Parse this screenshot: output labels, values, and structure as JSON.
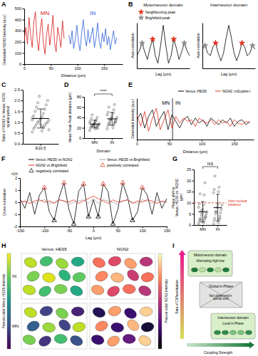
{
  "chart_data": [
    {
      "panel": "A",
      "type": "line",
      "x_label": "Distance (µm)",
      "y_label": "Detrended NGN2 intensity (a.u.)",
      "xlim": [
        0,
        185
      ],
      "xticks": [
        0,
        50,
        100,
        150
      ],
      "ylim": [
        0,
        500
      ],
      "yticks": [
        0,
        100,
        200,
        300,
        400,
        500
      ],
      "series": [
        {
          "name": "MN",
          "color": "#d7191c",
          "x": [
            0,
            3,
            6,
            9,
            12,
            15,
            18,
            21,
            24,
            27,
            30,
            33,
            36,
            39,
            42,
            45,
            48,
            51,
            54,
            57,
            60,
            63,
            66,
            69,
            72,
            75
          ],
          "values": [
            210,
            330,
            180,
            420,
            260,
            150,
            380,
            470,
            240,
            120,
            300,
            410,
            190,
            90,
            260,
            360,
            170,
            280,
            440,
            200,
            110,
            330,
            250,
            150,
            390,
            230
          ]
        },
        {
          "name": "IN",
          "color": "#2b5fd9",
          "x": [
            84,
            87,
            90,
            93,
            96,
            99,
            102,
            105,
            108,
            111,
            114,
            117,
            120,
            123,
            126,
            129,
            132,
            135,
            138,
            141,
            144,
            147,
            150,
            153,
            156,
            159,
            162,
            165,
            168,
            171,
            174
          ],
          "values": [
            260,
            180,
            300,
            140,
            220,
            350,
            200,
            120,
            280,
            400,
            240,
            160,
            310,
            190,
            260,
            330,
            150,
            230,
            370,
            210,
            140,
            280,
            200,
            320,
            170,
            250,
            130,
            220,
            300,
            180,
            240
          ]
        }
      ]
    },
    {
      "panel": "B",
      "type": "line",
      "title": "Motorneuron domain",
      "x_label": "Lag (µm)",
      "y_label": "Auto-correlation",
      "xlim": [
        -60,
        60
      ],
      "ylim": [
        -0.7,
        1.1
      ],
      "tick_labels": false,
      "legend": "top",
      "x": [
        -60,
        -54,
        -48,
        -42,
        -36,
        -30,
        -24,
        -18,
        -12,
        -6,
        0,
        6,
        12,
        18,
        24,
        30,
        36,
        42,
        48,
        54,
        60
      ],
      "series": [
        {
          "color": "#000000",
          "values": [
            -0.2,
            0.0,
            0.3,
            -0.05,
            -0.35,
            0.1,
            0.45,
            -0.2,
            -0.5,
            0.2,
            1,
            0.2,
            -0.5,
            -0.2,
            0.45,
            0.1,
            -0.35,
            -0.05,
            0.3,
            0.0,
            -0.2
          ]
        },
        {
          "name": "Neighbouring peak",
          "type": "scatter",
          "marker": "star",
          "color": "#e0301e",
          "x": [
            -24,
            24
          ],
          "values": [
            0.45,
            0.45
          ]
        },
        {
          "name": "Brightfield peak",
          "type": "scatter",
          "marker": "star",
          "color": "#8a8a8a",
          "x": [
            -48,
            48
          ],
          "values": [
            0.3,
            0.3
          ]
        }
      ]
    },
    {
      "type": "line",
      "title": "Interneuron domain",
      "x_label": "Lag (µm)",
      "y_label": "Auto-correlation",
      "xlim": [
        -60,
        60
      ],
      "ylim": [
        -0.7,
        1.1
      ],
      "tick_labels": false,
      "x": [
        -60,
        -54,
        -48,
        -42,
        -36,
        -30,
        -24,
        -18,
        -12,
        -6,
        0,
        6,
        12,
        18,
        24,
        30,
        36,
        42,
        48,
        54,
        60
      ],
      "series": [
        {
          "color": "#000000",
          "values": [
            0.05,
            0.2,
            -0.1,
            -0.2,
            0.15,
            0.3,
            -0.1,
            -0.4,
            -0.1,
            0.5,
            1,
            0.5,
            -0.1,
            -0.4,
            -0.1,
            0.3,
            0.15,
            -0.2,
            -0.1,
            0.2,
            0.05
          ]
        },
        {
          "type": "scatter",
          "marker": "star",
          "color": "#e0301e",
          "x": [
            -30,
            30
          ],
          "values": [
            0.3,
            0.3
          ]
        },
        {
          "type": "scatter",
          "marker": "star",
          "color": "#8a8a8a",
          "x": [
            -54,
            54
          ],
          "values": [
            0.2,
            0.2
          ]
        }
      ]
    },
    {
      "panel": "C",
      "type": "dot",
      "y_label": "Ratio of NGN2 to Venus::HES5 spatial period",
      "categories": [
        "E10.5"
      ],
      "ylim": [
        0,
        2.5
      ],
      "yticks": [
        {
          "value": 0,
          "label": "0.0"
        },
        0.5,
        {
          "value": 1,
          "label": "1.0"
        },
        1.5,
        {
          "value": 2,
          "label": "2.0"
        },
        2.5
      ],
      "color": "#333333",
      "values": [
        [
          0.55,
          0.6,
          0.7,
          0.75,
          0.8,
          0.85,
          0.9,
          0.95,
          1.0,
          1.0,
          1.05,
          1.1,
          1.15,
          1.2,
          1.25,
          1.3,
          1.4,
          1.5,
          1.6,
          1.7,
          1.8,
          1.9,
          2.0,
          2.2,
          0.65,
          0.9,
          1.1,
          0.8
        ]
      ],
      "mean": [
        1.17
      ],
      "error": [
        0.44
      ]
    },
    {
      "panel": "D",
      "type": "dot",
      "x_label": "Domain",
      "y_label": "Mean Peak-Peak distance (µm)",
      "categories": [
        "MN",
        "IN"
      ],
      "ylim": [
        0,
        80
      ],
      "yticks": [
        0,
        20,
        40,
        60,
        80
      ],
      "color": "#333333",
      "annotations": [
        "****"
      ],
      "values": [
        [
          15,
          18,
          20,
          21,
          22,
          23,
          24,
          25,
          25,
          26,
          27,
          28,
          29,
          30,
          32,
          33,
          35,
          38,
          40,
          45,
          19,
          24
        ],
        [
          18,
          20,
          24,
          26,
          28,
          30,
          32,
          33,
          35,
          36,
          38,
          40,
          42,
          45,
          48,
          50,
          55,
          60,
          65,
          27,
          31,
          37
        ]
      ],
      "mean": [
        27.2,
        37.3
      ],
      "error": [
        7.5,
        12.5
      ]
    },
    {
      "panel": "E",
      "type": "line",
      "x_label": "Distance (µm)",
      "y_label": "Detrended intensity (a.u.)",
      "xlim": [
        0,
        180
      ],
      "xticks": [
        0,
        50,
        100,
        150
      ],
      "ylim": [
        -1,
        1.5
      ],
      "tick_labels": "x",
      "legend": "top",
      "annotations": [
        "MN",
        "IN"
      ],
      "boundary": 55,
      "x": [
        0,
        6,
        12,
        18,
        24,
        30,
        36,
        42,
        48,
        54,
        60,
        66,
        72,
        78,
        84,
        90,
        96,
        102,
        108,
        114,
        120,
        126,
        132,
        138,
        144,
        150,
        156,
        162,
        168,
        174
      ],
      "series": [
        {
          "name": "Venus::HES5",
          "color": "#000000",
          "values": [
            0.2,
            0.6,
            -0.3,
            0.4,
            0.8,
            -0.2,
            0.3,
            0.7,
            -0.4,
            0.5,
            0.1,
            -0.3,
            0.2,
            0.4,
            -0.1,
            0.3,
            0.0,
            0.2,
            -0.2,
            0.3,
            0.1,
            -0.1,
            0.2,
            0.0,
            0.3,
            -0.2,
            0.1,
            0.2,
            -0.1,
            0.1
          ]
        },
        {
          "name": "NGN2::mScarlet-I",
          "color": "#e0301e",
          "values": [
            0.5,
            -0.2,
            0.7,
            -0.5,
            0.3,
            0.9,
            -0.4,
            0.2,
            0.8,
            -0.3,
            0.4,
            0.0,
            0.3,
            0.1,
            0.2,
            -0.2,
            0.3,
            0.1,
            0.0,
            0.2,
            -0.1,
            0.2,
            0.0,
            0.1,
            -0.2,
            0.2,
            0.0,
            -0.1,
            0.1,
            0.0
          ]
        }
      ]
    },
    {
      "panel": "F",
      "type": "line",
      "x_label": "Lag (µm)",
      "y_label": "Cross-correlation",
      "y_scale_label": "×10⁵",
      "xlim": [
        -150,
        150
      ],
      "xticks": [
        -150,
        -100,
        -50,
        0,
        50,
        100,
        150
      ],
      "ylim": [
        -2,
        2
      ],
      "yticks": [
        -2,
        -1,
        0,
        1,
        2
      ],
      "legend": "top",
      "x": [
        -150,
        -140,
        -130,
        -120,
        -110,
        -100,
        -90,
        -80,
        -70,
        -60,
        -50,
        -40,
        -30,
        -20,
        -10,
        0,
        10,
        20,
        30,
        40,
        50,
        60,
        70,
        80,
        90,
        100,
        110,
        120,
        130,
        140,
        150
      ],
      "series": [
        {
          "name": "Venus::HES5 vs NGN2",
          "color": "#000000",
          "values": [
            0.3,
            -0.5,
            0.8,
            -1.0,
            0.6,
            1.2,
            -0.8,
            -1.5,
            0.4,
            1.6,
            -0.6,
            -1.8,
            0.9,
            1.5,
            -1.2,
            0.2,
            -1.2,
            1.5,
            0.9,
            -1.8,
            -0.6,
            1.6,
            0.4,
            -1.5,
            -0.8,
            1.2,
            0.6,
            -1.0,
            0.8,
            -0.5,
            0.3
          ]
        },
        {
          "name": "Venus::HES5 vs Brightfield",
          "color": "#9e9e9e",
          "values": [
            0.1,
            0.0,
            0.2,
            -0.1,
            0.1,
            0.2,
            -0.1,
            0.0,
            0.2,
            0.1,
            -0.2,
            0.0,
            0.1,
            0.2,
            -0.1,
            0.3,
            -0.1,
            0.2,
            0.1,
            0.0,
            -0.2,
            0.1,
            0.2,
            0.0,
            -0.1,
            0.2,
            0.1,
            -0.1,
            0.2,
            0.0,
            0.1
          ]
        },
        {
          "name": "NGN2 vs Brightfield",
          "color": "#e0301e",
          "values": [
            0.0,
            0.1,
            -0.1,
            0.1,
            0.2,
            0.0,
            0.1,
            -0.1,
            0.2,
            0.1,
            0.0,
            0.2,
            -0.1,
            0.1,
            0.3,
            0.5,
            0.3,
            0.1,
            -0.1,
            0.2,
            0.0,
            0.1,
            0.2,
            -0.1,
            0.1,
            0.0,
            0.2,
            0.1,
            -0.1,
            0.1,
            0.0
          ]
        },
        {
          "name": "positively correlated",
          "type": "scatter",
          "marker": "triangle",
          "color": "#e0301e",
          "x": [
            -100,
            -60,
            -20,
            20,
            60,
            100
          ],
          "values": [
            1.2,
            1.6,
            1.5,
            1.5,
            1.6,
            1.2
          ]
        },
        {
          "name": "negatively correlated",
          "type": "scatter",
          "marker": "triangle",
          "color": "#000000",
          "x": [
            -80,
            -40,
            -10,
            10,
            40,
            80
          ],
          "values": [
            -1.5,
            -1.8,
            -1.2,
            -1.2,
            -1.8,
            -1.5
          ]
        }
      ]
    },
    {
      "panel": "G",
      "type": "dot",
      "y_label": "Phase shift in Venus::HES5 vs. NGN2 (µm)",
      "categories": [
        "MN",
        "IN"
      ],
      "ylim": [
        0,
        25
      ],
      "yticks": [
        0,
        5,
        10,
        15,
        20,
        25
      ],
      "color": "#333333",
      "annotations": [
        "NS"
      ],
      "reference_line": {
        "value": 10,
        "label": "Inter-nuclear distance",
        "color": "#e0301e"
      },
      "values": [
        [
          0.5,
          1,
          1.5,
          2,
          2.5,
          3,
          3,
          4,
          4.5,
          5,
          5.5,
          6,
          7,
          8,
          9,
          9.5,
          13.5,
          14,
          19,
          2,
          3.5,
          6.5
        ],
        [
          0.5,
          1,
          2,
          2.5,
          3,
          4,
          5,
          5.5,
          6,
          7,
          8,
          9,
          9.5,
          14.5,
          15,
          16,
          17,
          22,
          3,
          6
        ]
      ],
      "mean": [
        5.9,
        7.8
      ],
      "error": [
        4.6,
        6.0
      ]
    }
  ],
  "diagrams": [
    {
      "panel": "H",
      "columns": [
        "Venus::HES5",
        "NGN2"
      ],
      "rows": [
        "IN",
        "MN"
      ],
      "colorbars": [
        {
          "label": "Pseudo color Venus::HES5 intensity",
          "range": [
            0,
            1
          ]
        },
        {
          "label": "Pseudo color NGN2 intensity",
          "range": [
            0,
            1
          ]
        }
      ],
      "cells": [
        [
          [
            0.9,
            0.7,
            0.85,
            0.6,
            0.8,
            0.95,
            0.65,
            0.75,
            0.9,
            0.7,
            0.8,
            0.6
          ],
          [
            0.7,
            0.6,
            0.8,
            0.5,
            0.75,
            0.85,
            0.55,
            0.7,
            0.8,
            0.6,
            0.7,
            0.5
          ]
        ],
        [
          [
            0.9,
            0.2,
            0.8,
            0.1,
            0.3,
            0.85,
            0.2,
            0.9,
            0.8,
            0.15,
            0.7,
            0.25
          ],
          [
            0.15,
            0.8,
            0.2,
            0.9,
            0.75,
            0.2,
            0.85,
            0.1,
            0.2,
            0.8,
            0.3,
            0.9
          ]
        ]
      ]
    },
    {
      "panel": "I",
      "y_label": "Rate of Differentiation",
      "x_label": "Coupling Strength",
      "boxes": [
        {
          "title": "Motorneuron domain",
          "subtitle": "Alternating high-low"
        },
        {
          "title": "Global in Phase",
          "subtitle": "Not observed in spinal cord"
        },
        {
          "title": "Interneuron domain",
          "subtitle": "Local in Phase"
        }
      ]
    }
  ]
}
